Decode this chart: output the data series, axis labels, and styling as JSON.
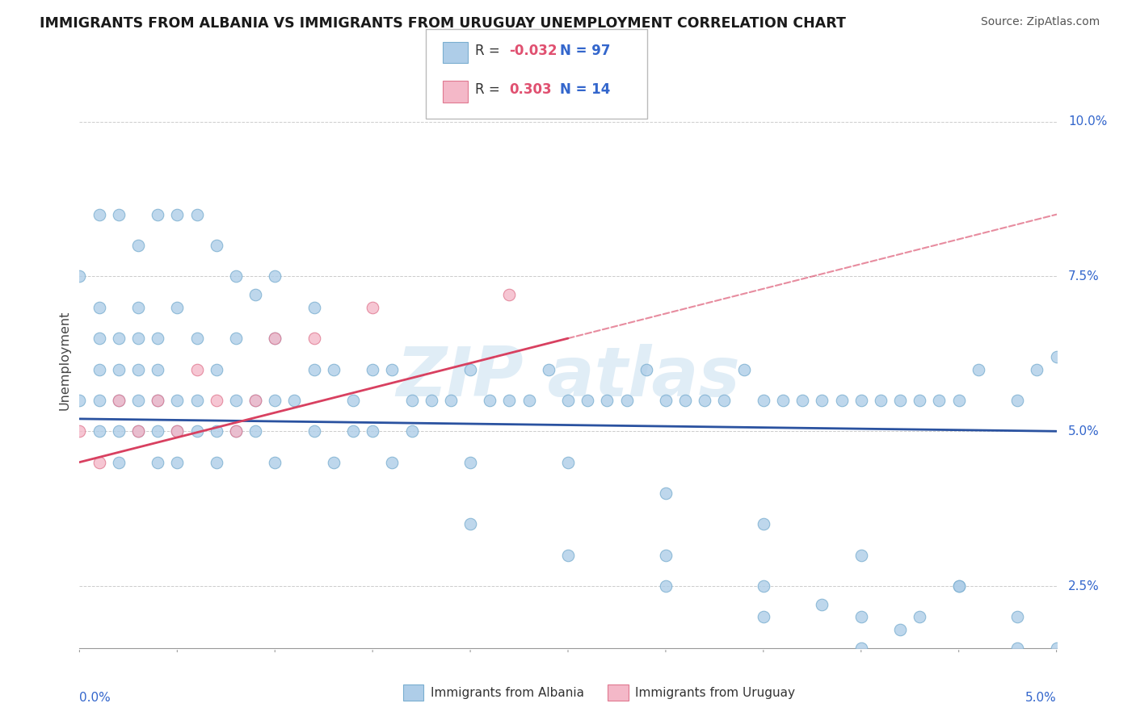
{
  "title": "IMMIGRANTS FROM ALBANIA VS IMMIGRANTS FROM URUGUAY UNEMPLOYMENT CORRELATION CHART",
  "source": "Source: ZipAtlas.com",
  "ylabel": "Unemployment",
  "xlim": [
    0.0,
    0.05
  ],
  "ylim": [
    0.015,
    0.108
  ],
  "yticks": [
    0.025,
    0.05,
    0.075,
    0.1
  ],
  "ytick_labels": [
    "2.5%",
    "5.0%",
    "7.5%",
    "10.0%"
  ],
  "xtick_left_label": "0.0%",
  "xtick_right_label": "5.0%",
  "albania_color": "#aecde8",
  "albania_edge": "#7aaed0",
  "uruguay_color": "#f4b8c8",
  "uruguay_edge": "#e07890",
  "albania_line_color": "#2a52a0",
  "uruguay_line_color": "#d84060",
  "r_color": "#e05070",
  "n_color": "#3366cc",
  "watermark_color": "#c8dff0",
  "background_color": "#ffffff",
  "grid_color": "#cccccc",
  "legend_label_albania": "Immigrants from Albania",
  "legend_label_uruguay": "Immigrants from Uruguay",
  "r_albania": "-0.032",
  "n_albania": "97",
  "r_uruguay": "0.303",
  "n_uruguay": "14",
  "albania_x": [
    0.001,
    0.001,
    0.001,
    0.001,
    0.002,
    0.002,
    0.002,
    0.002,
    0.002,
    0.003,
    0.003,
    0.003,
    0.003,
    0.003,
    0.004,
    0.004,
    0.004,
    0.004,
    0.004,
    0.005,
    0.005,
    0.005,
    0.005,
    0.006,
    0.006,
    0.006,
    0.007,
    0.007,
    0.007,
    0.008,
    0.008,
    0.008,
    0.009,
    0.009,
    0.01,
    0.01,
    0.01,
    0.011,
    0.012,
    0.012,
    0.013,
    0.013,
    0.014,
    0.014,
    0.015,
    0.015,
    0.016,
    0.016,
    0.017,
    0.017,
    0.018,
    0.019,
    0.02,
    0.02,
    0.021,
    0.022,
    0.023,
    0.024,
    0.025,
    0.026,
    0.027,
    0.028,
    0.029,
    0.03,
    0.031,
    0.032,
    0.033,
    0.034,
    0.035,
    0.036,
    0.037,
    0.038,
    0.039,
    0.04,
    0.041,
    0.042,
    0.043,
    0.044,
    0.045,
    0.046,
    0.048,
    0.049,
    0.05,
    0.0,
    0.0,
    0.001,
    0.001,
    0.002,
    0.003,
    0.004,
    0.005,
    0.006,
    0.007,
    0.008,
    0.009,
    0.01,
    0.012
  ],
  "albania_y": [
    0.05,
    0.055,
    0.06,
    0.065,
    0.045,
    0.05,
    0.055,
    0.06,
    0.065,
    0.05,
    0.055,
    0.06,
    0.065,
    0.07,
    0.045,
    0.05,
    0.055,
    0.06,
    0.065,
    0.045,
    0.05,
    0.055,
    0.07,
    0.05,
    0.055,
    0.065,
    0.045,
    0.05,
    0.06,
    0.05,
    0.055,
    0.065,
    0.05,
    0.055,
    0.045,
    0.055,
    0.065,
    0.055,
    0.05,
    0.06,
    0.045,
    0.06,
    0.05,
    0.055,
    0.05,
    0.06,
    0.045,
    0.06,
    0.05,
    0.055,
    0.055,
    0.055,
    0.045,
    0.06,
    0.055,
    0.055,
    0.055,
    0.06,
    0.055,
    0.055,
    0.055,
    0.055,
    0.06,
    0.055,
    0.055,
    0.055,
    0.055,
    0.06,
    0.055,
    0.055,
    0.055,
    0.055,
    0.055,
    0.055,
    0.055,
    0.055,
    0.055,
    0.055,
    0.055,
    0.06,
    0.055,
    0.06,
    0.062,
    0.055,
    0.075,
    0.07,
    0.085,
    0.085,
    0.08,
    0.085,
    0.085,
    0.085,
    0.08,
    0.075,
    0.072,
    0.075,
    0.07
  ],
  "albania_y_extra": [
    0.045,
    0.04,
    0.035,
    0.03,
    0.025,
    0.02,
    0.035,
    0.03,
    0.025,
    0.02,
    0.015,
    0.03,
    0.025,
    0.02,
    0.025,
    0.02,
    0.015,
    0.022,
    0.018,
    0.015
  ],
  "albania_x_extra": [
    0.025,
    0.03,
    0.035,
    0.04,
    0.045,
    0.048,
    0.02,
    0.025,
    0.03,
    0.035,
    0.04,
    0.03,
    0.035,
    0.04,
    0.045,
    0.043,
    0.048,
    0.038,
    0.042,
    0.05
  ],
  "uruguay_x": [
    0.0,
    0.001,
    0.002,
    0.003,
    0.004,
    0.005,
    0.006,
    0.007,
    0.008,
    0.009,
    0.01,
    0.012,
    0.015,
    0.022
  ],
  "uruguay_y": [
    0.05,
    0.045,
    0.055,
    0.05,
    0.055,
    0.05,
    0.06,
    0.055,
    0.05,
    0.055,
    0.065,
    0.065,
    0.07,
    0.072
  ]
}
